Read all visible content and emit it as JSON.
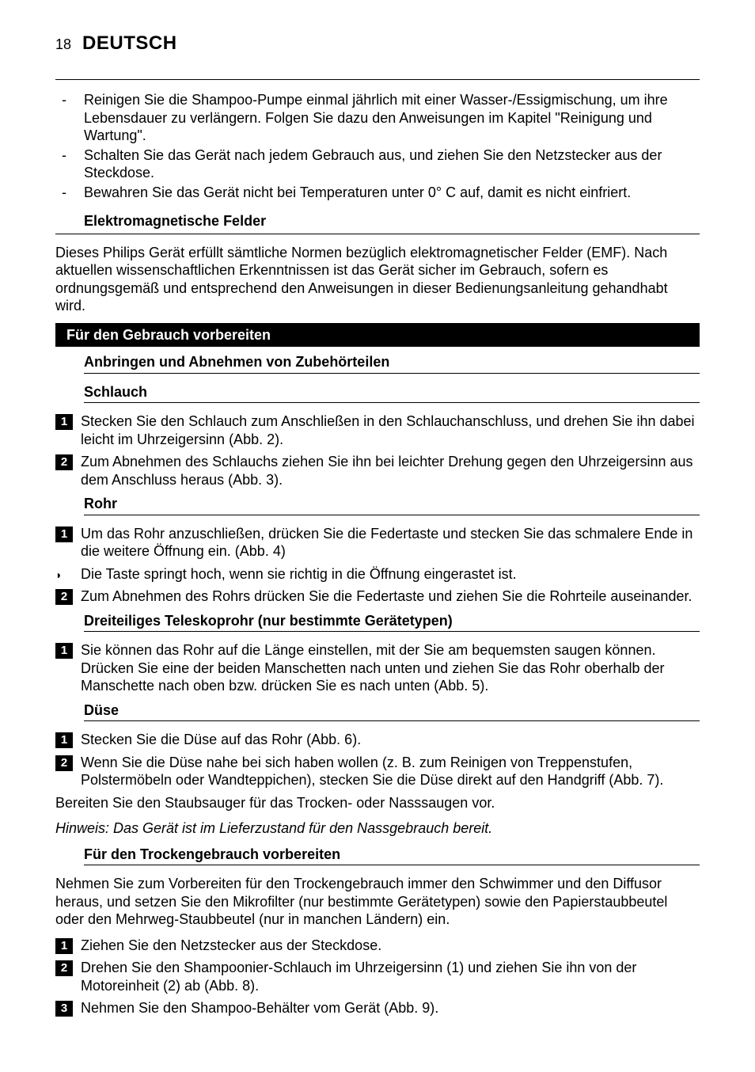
{
  "header": {
    "page_number": "18",
    "language": "DEUTSCH"
  },
  "intro_bullets": [
    "Reinigen Sie die Shampoo-Pumpe einmal jährlich mit einer Wasser-/Essigmischung, um ihre Lebensdauer zu verlängern. Folgen Sie dazu den Anweisungen im Kapitel \"Reinigung und Wartung\".",
    "Schalten Sie das Gerät nach jedem Gebrauch aus, und ziehen Sie den Netzstecker aus der Steckdose.",
    "Bewahren Sie das Gerät nicht bei Temperaturen unter 0° C auf, damit es nicht einfriert."
  ],
  "emf": {
    "heading": "Elektromagnetische Felder",
    "body": "Dieses Philips Gerät erfüllt sämtliche Normen bezüglich elektromagnetischer Felder (EMF). Nach aktuellen wissenschaftlichen Erkenntnissen ist das Gerät sicher im Gebrauch, sofern es ordnungsgemäß und entsprechend den Anweisungen in dieser Bedienungsanleitung gehandhabt wird."
  },
  "prepare": {
    "bar": "Für den Gebrauch vorbereiten",
    "attach_heading": "Anbringen und Abnehmen von Zubehörteilen",
    "schlauch": {
      "heading": "Schlauch",
      "steps": [
        "Stecken Sie den Schlauch zum Anschließen in den Schlauchanschluss, und drehen Sie ihn dabei leicht im Uhrzeigersinn (Abb. 2).",
        "Zum Abnehmen des Schlauchs ziehen Sie ihn bei leichter Drehung gegen den Uhrzeigersinn aus dem Anschluss heraus (Abb. 3)."
      ]
    },
    "rohr": {
      "heading": "Rohr",
      "step1": "Um das Rohr anzuschließen, drücken Sie die Federtaste und stecken Sie das schmalere Ende in die weitere Öffnung ein.  (Abb. 4)",
      "note_tri": "Die Taste springt hoch, wenn sie richtig in die Öffnung eingerastet ist.",
      "step2": "Zum Abnehmen des Rohrs drücken Sie die Federtaste und ziehen Sie die Rohrteile auseinander."
    },
    "teleskop": {
      "heading": "Dreiteiliges Teleskoprohr (nur bestimmte Gerätetypen)",
      "step1": "Sie können das Rohr auf die Länge einstellen, mit der Sie am bequemsten saugen können. Drücken Sie eine der beiden Manschetten nach unten und ziehen Sie das Rohr oberhalb der Manschette nach oben bzw. drücken Sie es nach unten (Abb. 5)."
    },
    "duese": {
      "heading": "Düse",
      "step1": "Stecken Sie die Düse auf das Rohr (Abb. 6).",
      "step2": "Wenn Sie die Düse nahe bei sich haben wollen (z. B. zum Reinigen von Treppenstufen, Polstermöbeln oder Wandteppichen), stecken Sie die Düse direkt auf den Handgriff (Abb. 7).",
      "after": "Bereiten Sie den Staubsauger für das Trocken- oder Nasssaugen vor."
    },
    "hinweis": "Hinweis: Das Gerät ist im Lieferzustand für den Nassgebrauch bereit.",
    "trocken": {
      "heading": "Für den Trockengebrauch vorbereiten",
      "intro": "Nehmen Sie zum Vorbereiten für den Trockengebrauch immer den Schwimmer und den Diffusor heraus, und setzen Sie den Mikrofilter (nur bestimmte Gerätetypen) sowie den Papierstaubbeutel oder den Mehrweg-Staubbeutel (nur in manchen Ländern) ein.",
      "steps": [
        "Ziehen Sie den Netzstecker aus der Steckdose.",
        "Drehen Sie den Shampoonier-Schlauch im Uhrzeigersinn (1) und ziehen Sie ihn von der Motoreinheit (2) ab (Abb. 8).",
        "Nehmen Sie den Shampoo-Behälter vom Gerät (Abb. 9)."
      ]
    }
  }
}
